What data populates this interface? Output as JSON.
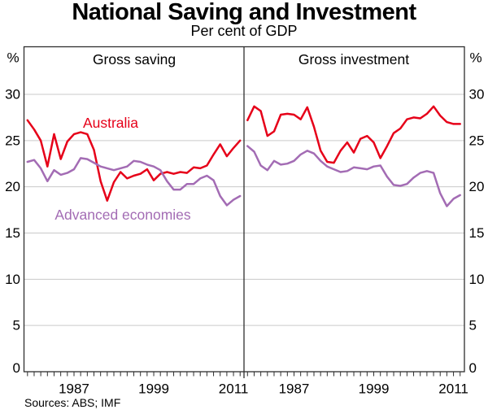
{
  "header": {
    "title": "National Saving and Investment",
    "subtitle": "Per cent of GDP"
  },
  "footer": {
    "sources": "Sources: ABS; IMF"
  },
  "colors": {
    "australia": "#e60019",
    "advanced_economies": "#a36cb4",
    "gridline": "#c9c9c9",
    "frame": "#2e2e2e"
  },
  "axes": {
    "unit_label": "%",
    "y_ticks_labeled": [
      0,
      5,
      10,
      15,
      20,
      25,
      30
    ],
    "y_gridlines": [
      5,
      10,
      15,
      20,
      25,
      30
    ],
    "ylim": [
      0,
      35
    ],
    "x_labeled_years": [
      1987,
      1999,
      2011
    ],
    "x_minor_tick_interval_years": 1
  },
  "chart_data": [
    {
      "type": "line",
      "title": "Gross saving",
      "xlabel": "",
      "ylabel": "%",
      "ylim": [
        0,
        35
      ],
      "x": [
        1980,
        1981,
        1982,
        1983,
        1984,
        1985,
        1986,
        1987,
        1988,
        1989,
        1990,
        1991,
        1992,
        1993,
        1994,
        1995,
        1996,
        1997,
        1998,
        1999,
        2000,
        2001,
        2002,
        2003,
        2004,
        2005,
        2006,
        2007,
        2008,
        2009,
        2010,
        2011,
        2012
      ],
      "series": [
        {
          "name": "Australia",
          "color": "#e60019",
          "values": [
            27.2,
            26.2,
            25.0,
            22.2,
            25.7,
            23.0,
            24.9,
            25.7,
            25.9,
            25.7,
            24.0,
            20.6,
            18.5,
            20.5,
            21.6,
            20.9,
            21.2,
            21.4,
            21.9,
            20.7,
            21.4,
            21.6,
            21.4,
            21.6,
            21.5,
            22.1,
            22.0,
            22.3,
            23.5,
            24.6,
            23.3,
            24.2,
            25.0
          ]
        },
        {
          "name": "Advanced economies",
          "color": "#a36cb4",
          "values": [
            22.7,
            22.9,
            22.0,
            20.6,
            21.8,
            21.3,
            21.5,
            21.9,
            23.1,
            23.0,
            22.6,
            22.2,
            22.0,
            21.8,
            22.0,
            22.2,
            22.8,
            22.7,
            22.4,
            22.2,
            21.8,
            20.6,
            19.7,
            19.7,
            20.3,
            20.3,
            20.9,
            21.2,
            20.7,
            19.0,
            18.0,
            18.6,
            19.0
          ]
        }
      ]
    },
    {
      "type": "line",
      "title": "Gross investment",
      "xlabel": "",
      "ylabel": "%",
      "ylim": [
        0,
        35
      ],
      "x": [
        1980,
        1981,
        1982,
        1983,
        1984,
        1985,
        1986,
        1987,
        1988,
        1989,
        1990,
        1991,
        1992,
        1993,
        1994,
        1995,
        1996,
        1997,
        1998,
        1999,
        2000,
        2001,
        2002,
        2003,
        2004,
        2005,
        2006,
        2007,
        2008,
        2009,
        2010,
        2011,
        2012
      ],
      "series": [
        {
          "name": "Australia",
          "color": "#e60019",
          "values": [
            27.2,
            28.7,
            28.2,
            25.5,
            26.0,
            27.8,
            27.9,
            27.8,
            27.3,
            28.6,
            26.5,
            23.9,
            22.7,
            22.6,
            23.9,
            24.8,
            23.7,
            25.2,
            25.5,
            24.8,
            23.1,
            24.4,
            25.8,
            26.3,
            27.3,
            27.5,
            27.4,
            27.9,
            28.7,
            27.7,
            27.0,
            26.8,
            26.8
          ]
        },
        {
          "name": "Advanced economies",
          "color": "#a36cb4",
          "values": [
            24.4,
            23.8,
            22.3,
            21.8,
            22.8,
            22.4,
            22.5,
            22.8,
            23.5,
            23.9,
            23.6,
            22.8,
            22.2,
            21.9,
            21.6,
            21.7,
            22.1,
            22.0,
            21.9,
            22.2,
            22.3,
            21.1,
            20.2,
            20.1,
            20.3,
            21.0,
            21.5,
            21.7,
            21.5,
            19.3,
            17.9,
            18.7,
            19.1
          ]
        }
      ]
    }
  ]
}
